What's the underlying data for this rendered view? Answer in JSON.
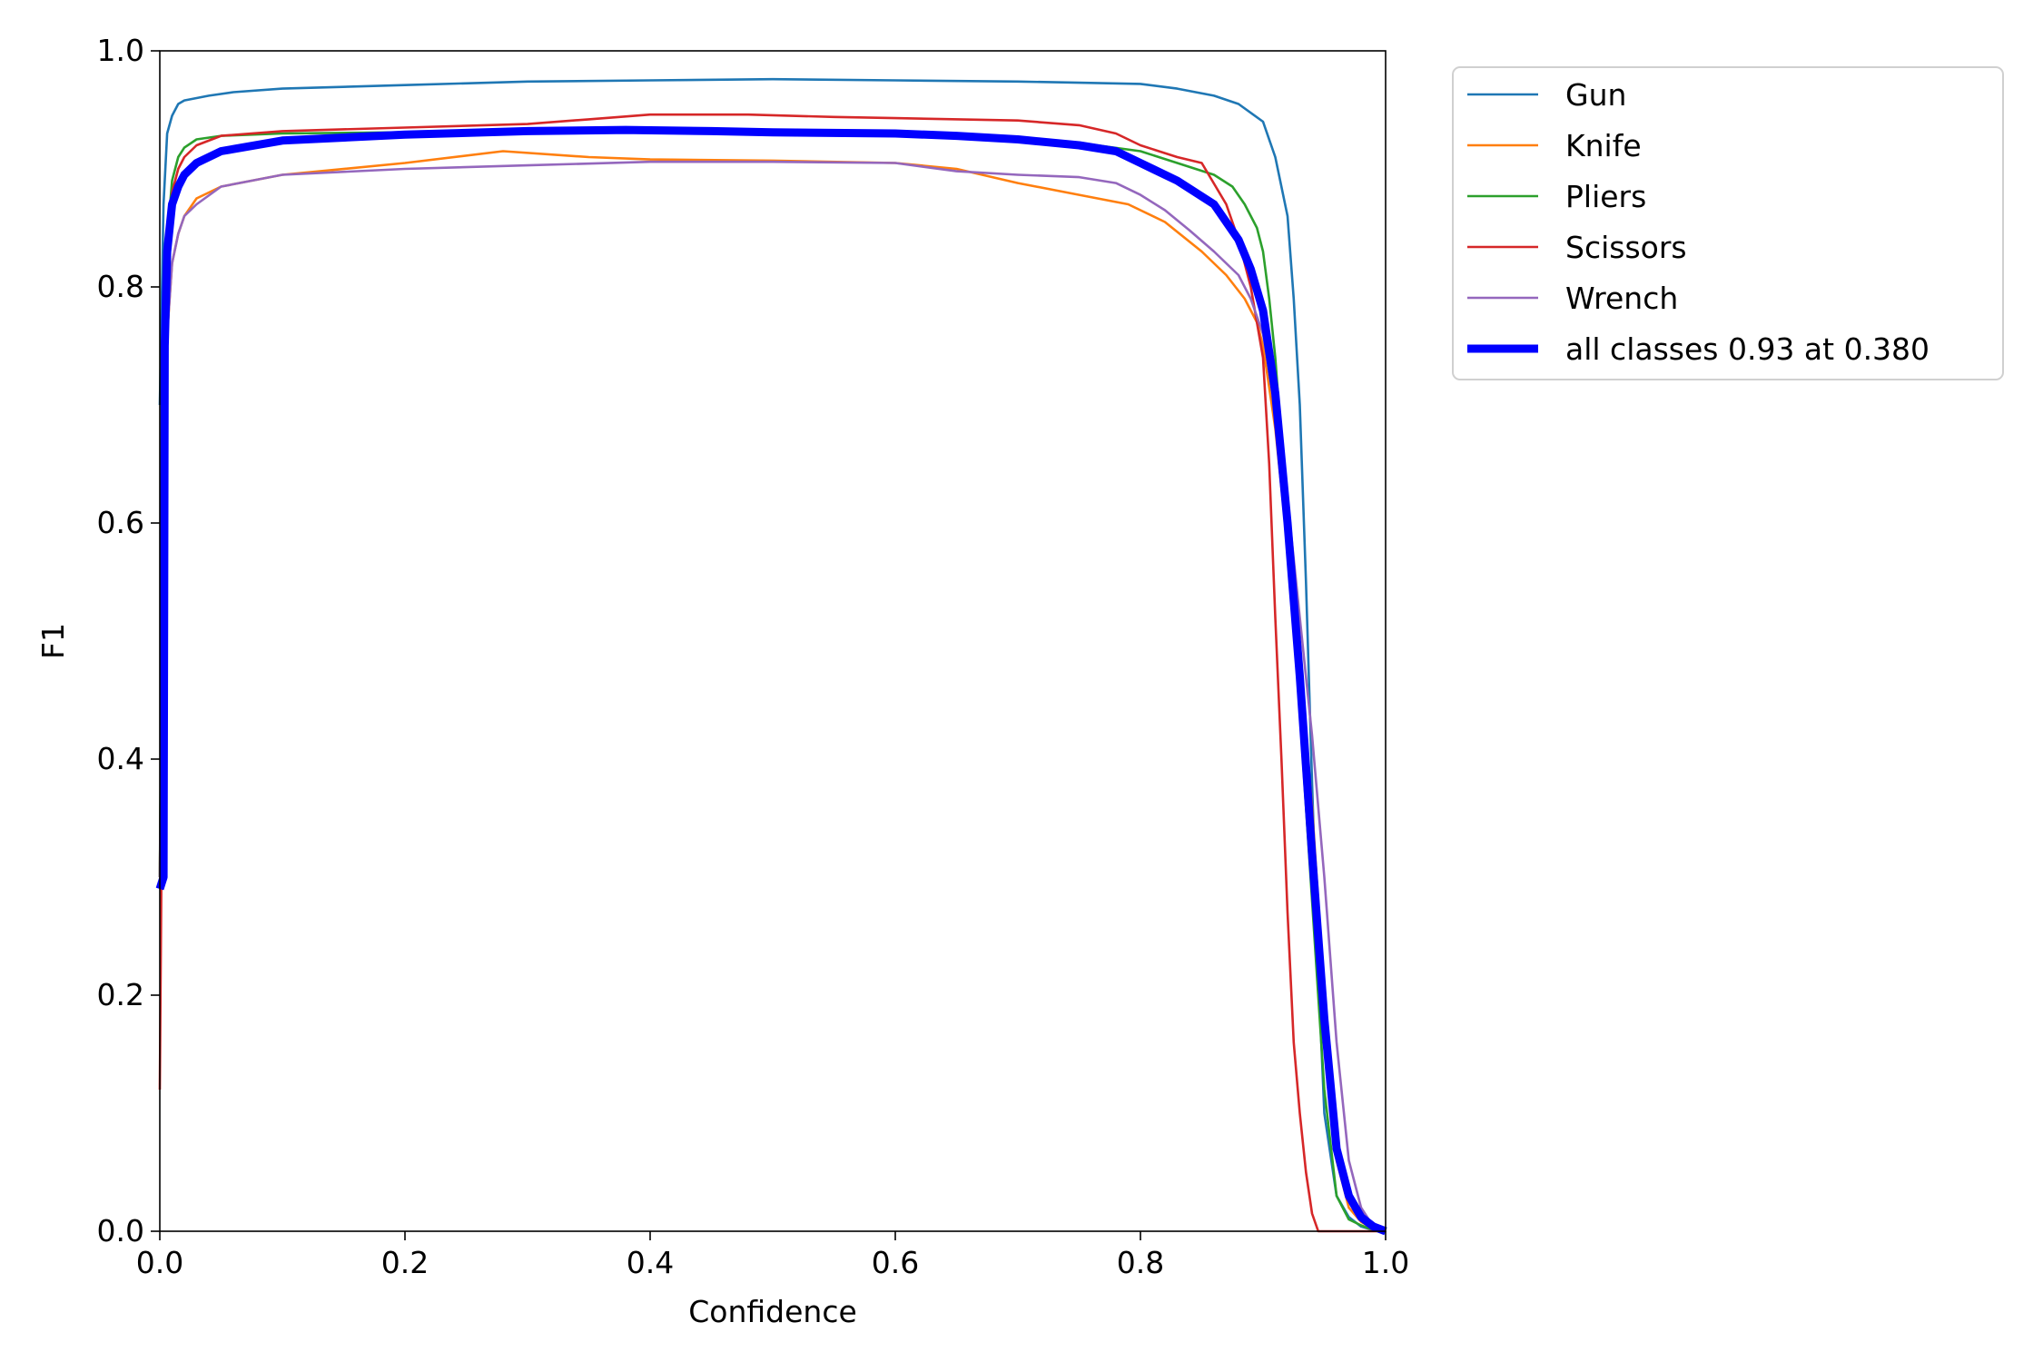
{
  "chart_data": {
    "type": "line",
    "title": "",
    "xlabel": "Confidence",
    "ylabel": "F1",
    "xlim": [
      0,
      1
    ],
    "ylim": [
      0,
      1
    ],
    "xticks": [
      "0.0",
      "0.2",
      "0.4",
      "0.6",
      "0.8",
      "1.0"
    ],
    "yticks": [
      "0.0",
      "0.2",
      "0.4",
      "0.6",
      "0.8",
      "1.0"
    ],
    "legend_position": "outside-top-right",
    "grid": false,
    "series": [
      {
        "name": "Gun",
        "color": "#1f77b4",
        "x": [
          0.0,
          0.003,
          0.006,
          0.01,
          0.015,
          0.02,
          0.04,
          0.06,
          0.1,
          0.2,
          0.3,
          0.4,
          0.5,
          0.6,
          0.7,
          0.75,
          0.8,
          0.83,
          0.86,
          0.88,
          0.9,
          0.91,
          0.92,
          0.925,
          0.93,
          0.935,
          0.94,
          0.945,
          0.95,
          0.96,
          0.97,
          0.98,
          0.99,
          1.0
        ],
        "y": [
          0.7,
          0.87,
          0.93,
          0.945,
          0.955,
          0.958,
          0.962,
          0.965,
          0.968,
          0.971,
          0.974,
          0.975,
          0.976,
          0.975,
          0.974,
          0.973,
          0.972,
          0.968,
          0.962,
          0.955,
          0.94,
          0.91,
          0.86,
          0.79,
          0.7,
          0.55,
          0.38,
          0.22,
          0.1,
          0.03,
          0.012,
          0.004,
          0.001,
          0.0
        ]
      },
      {
        "name": "Knife",
        "color": "#ff7f0e",
        "x": [
          0.0,
          0.003,
          0.006,
          0.01,
          0.015,
          0.02,
          0.03,
          0.05,
          0.1,
          0.2,
          0.28,
          0.35,
          0.4,
          0.5,
          0.6,
          0.65,
          0.7,
          0.75,
          0.79,
          0.82,
          0.85,
          0.87,
          0.885,
          0.895,
          0.9,
          0.91,
          0.92,
          0.93,
          0.94,
          0.95,
          0.96,
          0.97,
          0.98,
          0.99,
          1.0
        ],
        "y": [
          0.3,
          0.62,
          0.76,
          0.82,
          0.845,
          0.86,
          0.875,
          0.885,
          0.895,
          0.905,
          0.915,
          0.91,
          0.908,
          0.907,
          0.905,
          0.9,
          0.888,
          0.878,
          0.87,
          0.855,
          0.83,
          0.81,
          0.79,
          0.77,
          0.75,
          0.68,
          0.58,
          0.48,
          0.36,
          0.2,
          0.06,
          0.02,
          0.008,
          0.002,
          0.0
        ]
      },
      {
        "name": "Pliers",
        "color": "#2ca02c",
        "x": [
          0.0,
          0.003,
          0.006,
          0.01,
          0.015,
          0.02,
          0.03,
          0.05,
          0.1,
          0.2,
          0.3,
          0.4,
          0.5,
          0.6,
          0.7,
          0.75,
          0.8,
          0.83,
          0.86,
          0.875,
          0.885,
          0.895,
          0.9,
          0.905,
          0.91,
          0.92,
          0.93,
          0.94,
          0.95,
          0.96,
          0.97,
          0.98,
          0.99,
          1.0
        ],
        "y": [
          0.3,
          0.7,
          0.84,
          0.89,
          0.91,
          0.918,
          0.925,
          0.928,
          0.93,
          0.931,
          0.933,
          0.934,
          0.93,
          0.929,
          0.925,
          0.922,
          0.915,
          0.905,
          0.895,
          0.885,
          0.87,
          0.85,
          0.83,
          0.79,
          0.74,
          0.6,
          0.44,
          0.28,
          0.12,
          0.03,
          0.01,
          0.005,
          0.001,
          0.0
        ]
      },
      {
        "name": "Scissors",
        "color": "#d62728",
        "x": [
          0.0,
          0.002,
          0.004,
          0.006,
          0.01,
          0.015,
          0.02,
          0.03,
          0.05,
          0.1,
          0.2,
          0.3,
          0.35,
          0.4,
          0.48,
          0.55,
          0.6,
          0.7,
          0.75,
          0.78,
          0.8,
          0.83,
          0.85,
          0.87,
          0.88,
          0.89,
          0.9,
          0.905,
          0.91,
          0.915,
          0.92,
          0.925,
          0.93,
          0.935,
          0.94,
          0.945,
          0.95,
          1.0
        ],
        "y": [
          0.12,
          0.4,
          0.7,
          0.82,
          0.88,
          0.9,
          0.91,
          0.92,
          0.928,
          0.932,
          0.935,
          0.938,
          0.942,
          0.946,
          0.946,
          0.944,
          0.943,
          0.941,
          0.937,
          0.93,
          0.92,
          0.91,
          0.905,
          0.87,
          0.84,
          0.8,
          0.74,
          0.65,
          0.52,
          0.4,
          0.27,
          0.16,
          0.1,
          0.05,
          0.015,
          0.0,
          0.0,
          0.0
        ]
      },
      {
        "name": "Wrench",
        "color": "#9467bd",
        "x": [
          0.0,
          0.003,
          0.006,
          0.01,
          0.015,
          0.02,
          0.03,
          0.05,
          0.1,
          0.2,
          0.3,
          0.4,
          0.5,
          0.6,
          0.65,
          0.7,
          0.75,
          0.78,
          0.8,
          0.82,
          0.84,
          0.86,
          0.88,
          0.89,
          0.9,
          0.91,
          0.92,
          0.93,
          0.94,
          0.95,
          0.96,
          0.97,
          0.98,
          0.99,
          1.0
        ],
        "y": [
          0.3,
          0.62,
          0.76,
          0.82,
          0.845,
          0.86,
          0.87,
          0.885,
          0.895,
          0.9,
          0.903,
          0.906,
          0.906,
          0.905,
          0.898,
          0.895,
          0.893,
          0.888,
          0.878,
          0.865,
          0.848,
          0.83,
          0.81,
          0.79,
          0.76,
          0.7,
          0.62,
          0.52,
          0.42,
          0.3,
          0.16,
          0.06,
          0.02,
          0.004,
          0.0
        ]
      },
      {
        "name": "all classes 0.93 at 0.380",
        "color": "#0000ff",
        "bold": true,
        "x": [
          0.0,
          0.003,
          0.004,
          0.006,
          0.01,
          0.015,
          0.02,
          0.03,
          0.05,
          0.1,
          0.2,
          0.3,
          0.38,
          0.45,
          0.5,
          0.6,
          0.65,
          0.7,
          0.75,
          0.78,
          0.8,
          0.83,
          0.86,
          0.88,
          0.89,
          0.9,
          0.91,
          0.92,
          0.93,
          0.94,
          0.95,
          0.96,
          0.97,
          0.98,
          0.99,
          1.0
        ],
        "y": [
          0.29,
          0.3,
          0.75,
          0.83,
          0.87,
          0.885,
          0.895,
          0.905,
          0.915,
          0.924,
          0.929,
          0.932,
          0.933,
          0.932,
          0.931,
          0.93,
          0.928,
          0.925,
          0.92,
          0.915,
          0.905,
          0.89,
          0.87,
          0.84,
          0.815,
          0.78,
          0.71,
          0.6,
          0.47,
          0.32,
          0.18,
          0.07,
          0.03,
          0.012,
          0.004,
          0.0
        ]
      }
    ]
  }
}
